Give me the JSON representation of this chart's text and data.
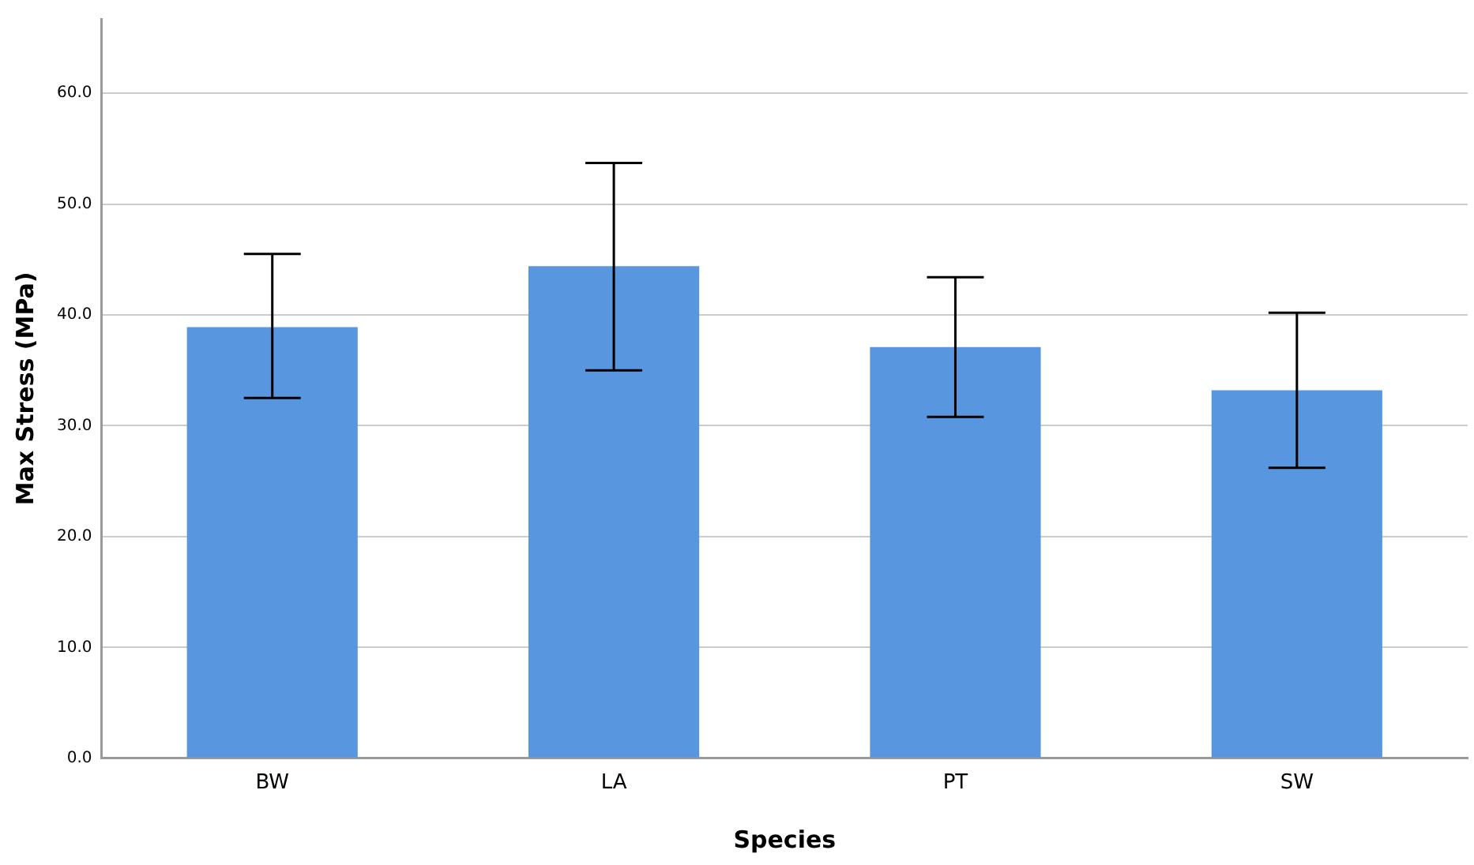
{
  "chart_data": {
    "type": "bar",
    "xlabel": "Species",
    "ylabel": "Max Stress (MPa)",
    "categories": [
      "BW",
      "LA",
      "PT",
      "SW"
    ],
    "values": [
      38.9,
      44.4,
      37.1,
      33.2
    ],
    "errors": [
      [
        32.5,
        45.5
      ],
      [
        35.0,
        53.7
      ],
      [
        30.8,
        43.4
      ],
      [
        26.2,
        40.2
      ]
    ],
    "color": "#5896e0",
    "ylim": [
      0,
      66.7
    ],
    "yticks": [
      {
        "value": 0,
        "label": "0.0"
      },
      {
        "value": 10,
        "label": "10.0"
      },
      {
        "value": 20,
        "label": "20.0"
      },
      {
        "value": 30,
        "label": "30.0"
      },
      {
        "value": 40,
        "label": "40.0"
      },
      {
        "value": 50,
        "label": "50.0"
      },
      {
        "value": 60,
        "label": "60.0"
      }
    ],
    "grid": "y",
    "legend": false
  }
}
